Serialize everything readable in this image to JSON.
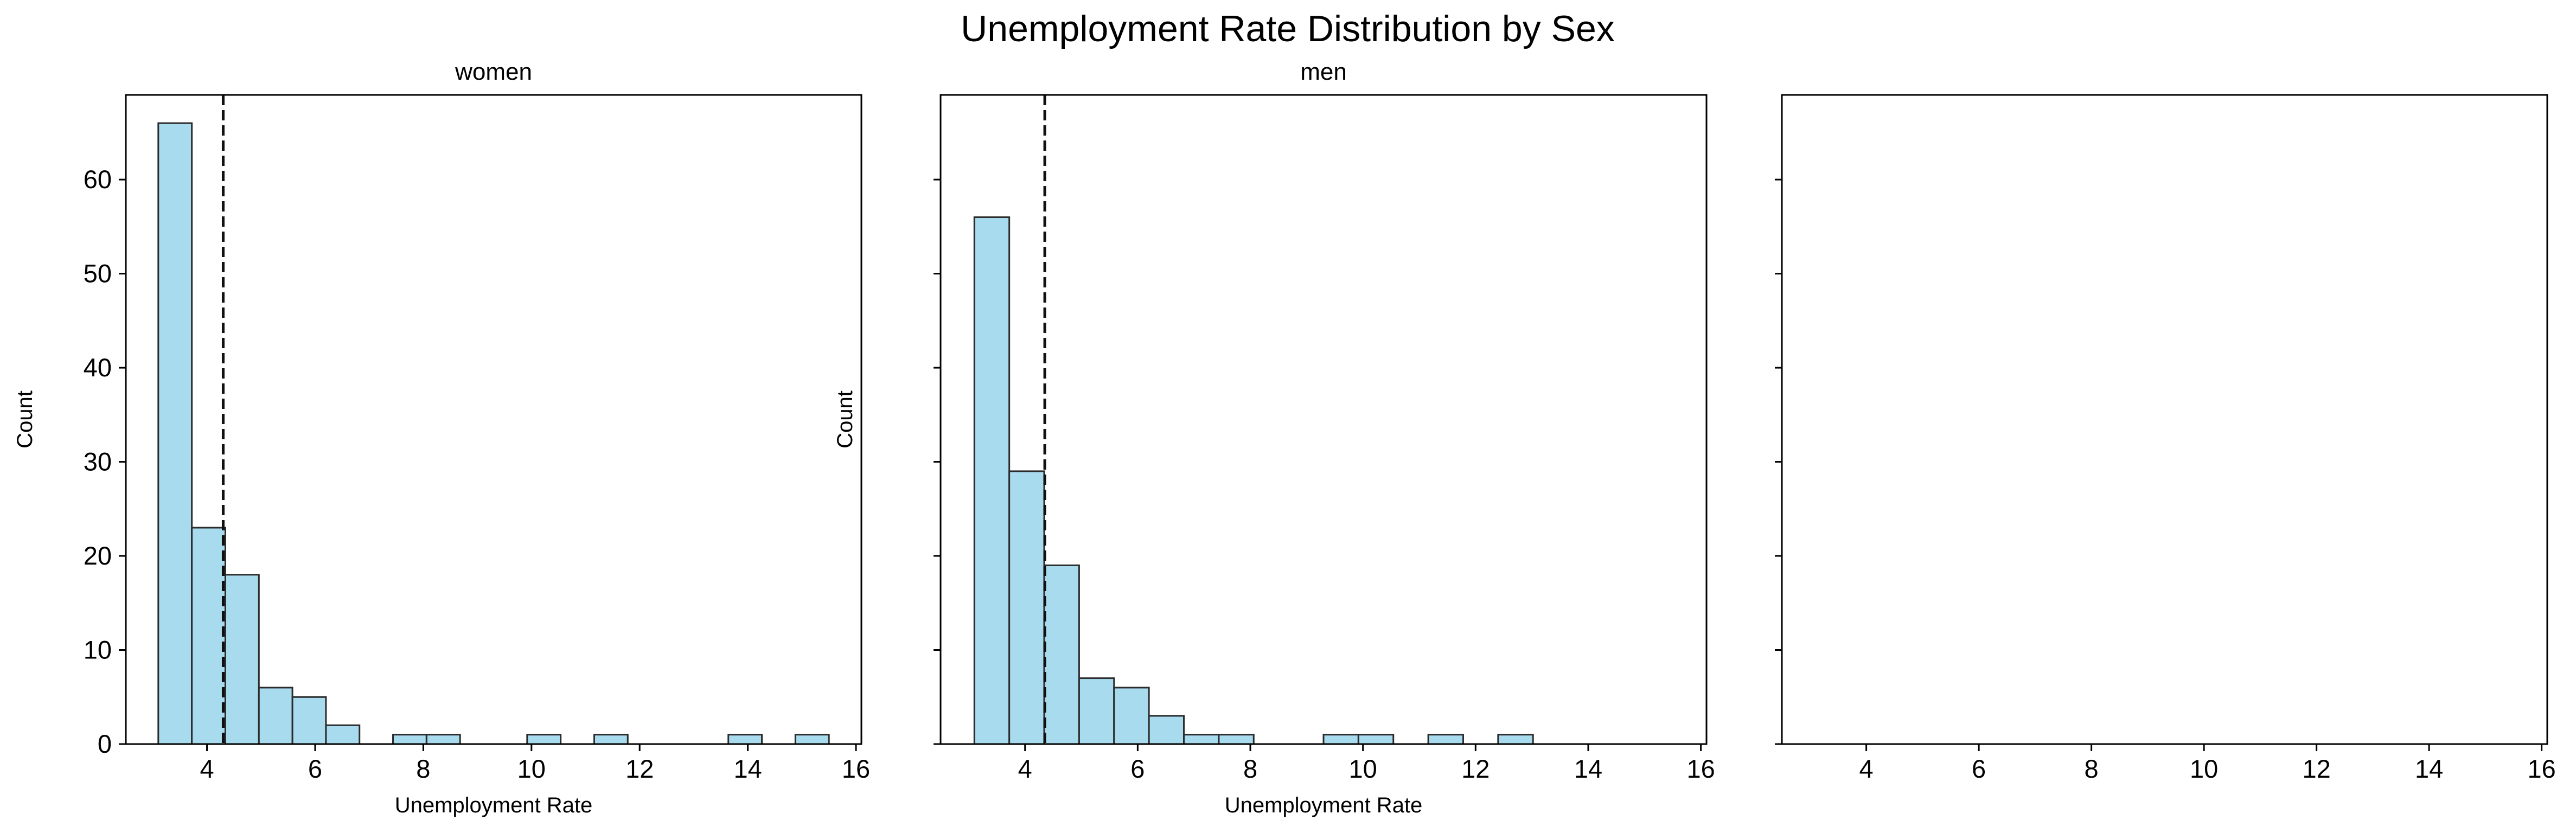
{
  "chart_data": {
    "type": "bar",
    "title": "Unemployment Rate Distribution by Sex",
    "colors": {
      "bar_fill": "#a8dbee",
      "bar_edge": "#2b2b2b",
      "mean_line": "#111111"
    },
    "bin_edges": [
      3.1,
      3.72,
      4.34,
      4.96,
      5.58,
      6.2,
      6.82,
      7.44,
      8.06,
      8.68,
      9.3,
      9.92,
      10.54,
      11.16,
      11.78,
      12.4,
      13.02,
      13.64,
      14.26,
      14.88,
      15.5
    ],
    "xlim": [
      2.5,
      16.1
    ],
    "ylim": [
      0,
      69
    ],
    "xticks": [
      4,
      6,
      8,
      10,
      12,
      14,
      16
    ],
    "yticks": [
      0,
      10,
      20,
      30,
      40,
      50,
      60
    ],
    "panels": [
      {
        "title": "women",
        "xlabel": "Unemployment Rate",
        "ylabel": "Count",
        "counts": [
          66,
          23,
          18,
          6,
          5,
          2,
          0,
          1,
          1,
          0,
          0,
          1,
          0,
          1,
          0,
          0,
          0,
          1,
          0,
          1
        ],
        "mean": 4.3
      },
      {
        "title": "men",
        "xlabel": "Unemployment Rate",
        "ylabel": "Count",
        "counts": [
          56,
          29,
          19,
          7,
          6,
          3,
          1,
          1,
          0,
          0,
          1,
          1,
          0,
          1,
          0,
          1,
          0,
          0,
          0,
          0
        ],
        "mean": 4.35
      },
      {
        "title": "",
        "xlabel": "",
        "ylabel": "",
        "counts": [],
        "mean": null
      }
    ]
  }
}
